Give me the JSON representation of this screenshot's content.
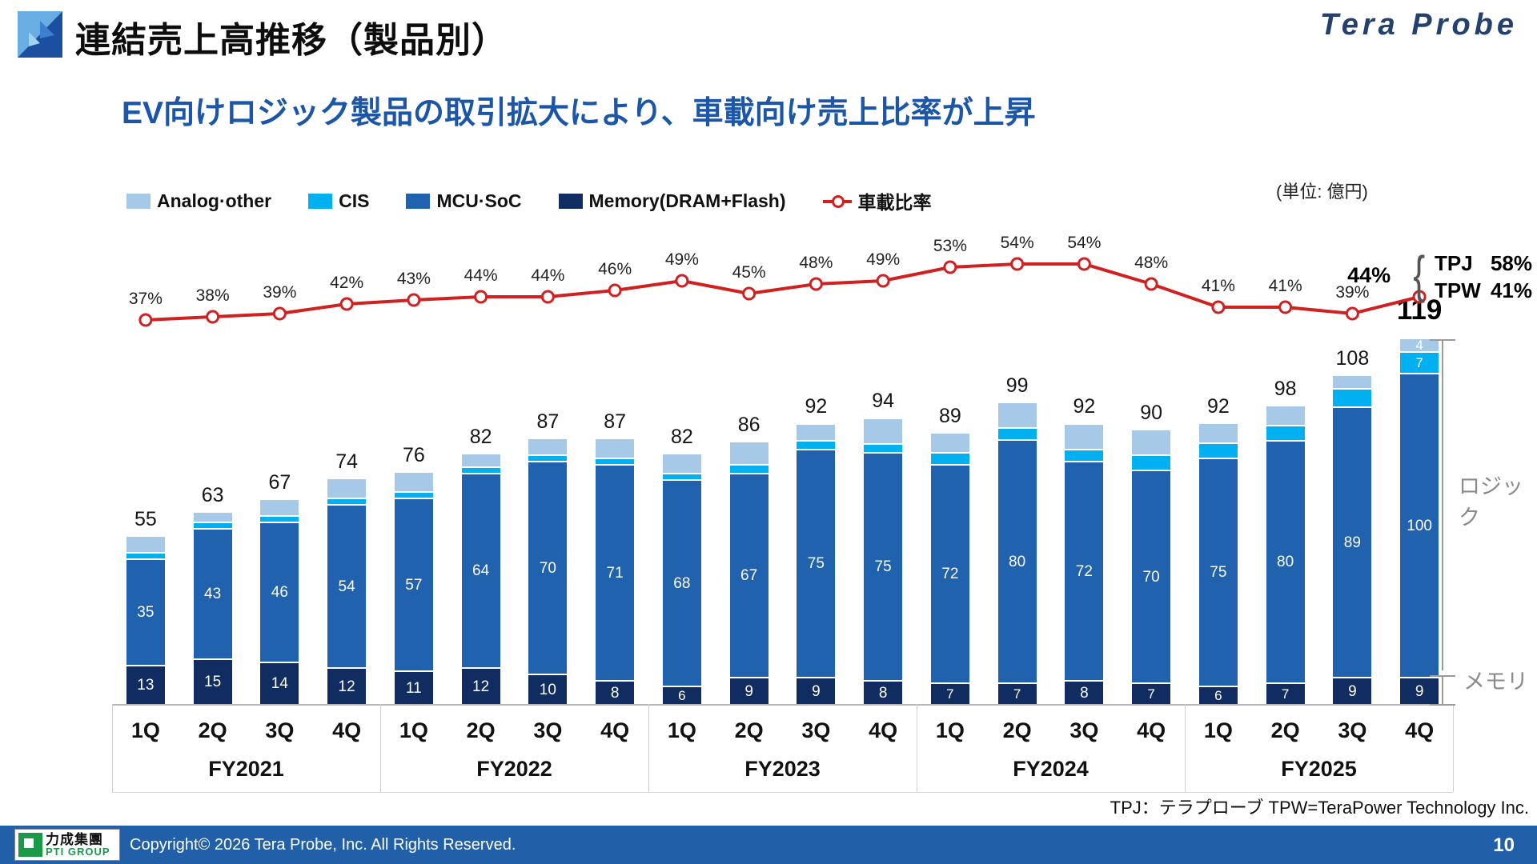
{
  "header": {
    "title": "連結売上高推移（製品別）",
    "brand": "Tera Probe"
  },
  "subtitle": "EV向けロジック製品の取引拡大により、車載向け売上比率が上昇",
  "unit_note": "(単位: 億円)",
  "legend": [
    {
      "label": "Analog·other",
      "color": "#A6C9E8",
      "type": "swatch"
    },
    {
      "label": "CIS",
      "color": "#00B0F0",
      "type": "swatch"
    },
    {
      "label": "MCU·SoC",
      "color": "#2062AE",
      "type": "swatch"
    },
    {
      "label": "Memory(DRAM+Flash)",
      "color": "#102C60",
      "type": "swatch"
    },
    {
      "label": "車載比率",
      "color": "#D02020",
      "type": "line"
    }
  ],
  "chart_data": {
    "type": "bar",
    "stacked": true,
    "title": "連結売上高推移（製品別）",
    "unit": "億円",
    "categories": [
      "1Q",
      "2Q",
      "3Q",
      "4Q",
      "1Q",
      "2Q",
      "3Q",
      "4Q",
      "1Q",
      "2Q",
      "3Q",
      "4Q",
      "1Q",
      "2Q",
      "3Q",
      "4Q",
      "1Q",
      "2Q",
      "3Q",
      "4Q"
    ],
    "groups": [
      "FY2021",
      "FY2022",
      "FY2023",
      "FY2024",
      "FY2025"
    ],
    "series": [
      {
        "name": "Memory(DRAM+Flash)",
        "color": "#102C60",
        "values": [
          13,
          15,
          14,
          12,
          11,
          12,
          10,
          8,
          6,
          9,
          9,
          8,
          7,
          7,
          8,
          7,
          6,
          7,
          9,
          9
        ],
        "show_value_labels": "all"
      },
      {
        "name": "MCU·SoC",
        "color": "#2062AE",
        "values": [
          35,
          43,
          46,
          54,
          57,
          64,
          70,
          71,
          68,
          67,
          75,
          75,
          72,
          80,
          72,
          70,
          75,
          80,
          89,
          100
        ],
        "show_value_labels": "all"
      },
      {
        "name": "CIS",
        "color": "#00B0F0",
        "values": [
          2,
          2,
          2,
          2,
          2,
          2,
          2,
          2,
          2,
          3,
          3,
          3,
          4,
          4,
          4,
          5,
          5,
          5,
          6,
          7
        ],
        "show_value_labels": "last"
      },
      {
        "name": "Analog·other",
        "color": "#A6C9E8",
        "values": [
          5,
          3,
          5,
          6,
          6,
          4,
          5,
          6,
          6,
          7,
          5,
          8,
          6,
          8,
          8,
          8,
          6,
          6,
          4,
          4
        ],
        "show_value_labels": "last"
      }
    ],
    "totals": [
      55,
      63,
      67,
      74,
      76,
      82,
      87,
      87,
      82,
      86,
      92,
      94,
      89,
      99,
      92,
      90,
      92,
      98,
      108,
      119
    ],
    "line_series": {
      "name": "車載比率",
      "color": "#D02020",
      "values_pct": [
        37,
        38,
        39,
        42,
        43,
        44,
        44,
        46,
        49,
        45,
        48,
        49,
        53,
        54,
        54,
        48,
        41,
        41,
        39,
        44
      ]
    },
    "legend_position": "top",
    "grid": false
  },
  "callout": {
    "rows": [
      {
        "label": "TPJ",
        "value": "58%"
      },
      {
        "label": "TPW",
        "value": "41%"
      }
    ],
    "brace": "{"
  },
  "side_labels": {
    "logic": "ロジック",
    "memory": "メモリ"
  },
  "footnote": "TPJ：テラプローブ  TPW=TeraPower Technology Inc.",
  "footer": {
    "group_name": "力成集團",
    "group_sub": "PTI GROUP",
    "copyright": "Copyright©  2026 Tera Probe, Inc. All Rights Reserved.",
    "page": "10"
  }
}
